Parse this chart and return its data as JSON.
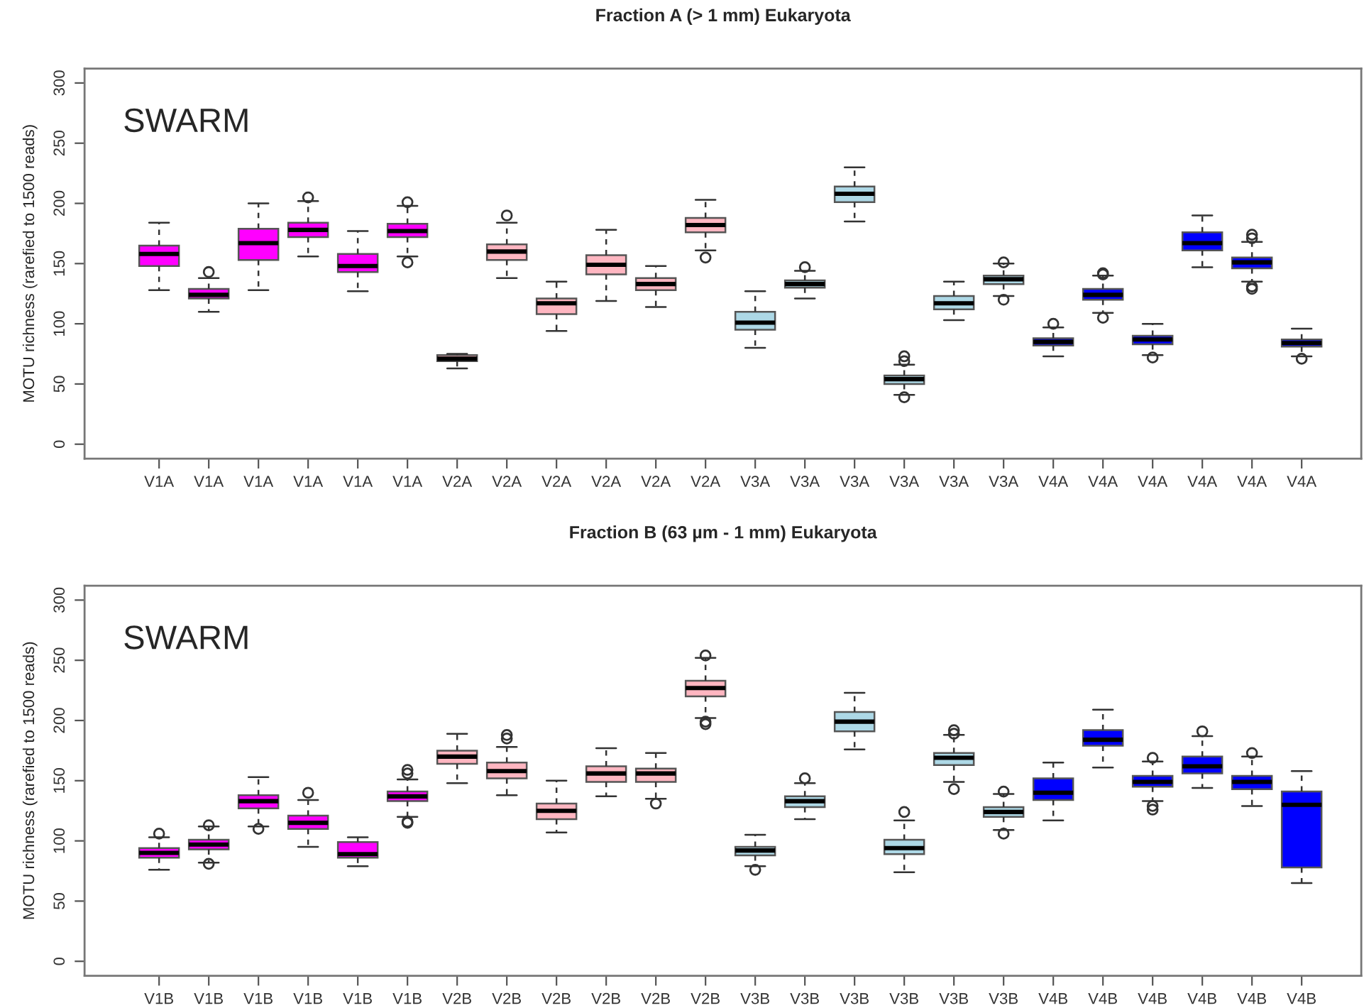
{
  "chart_data": [
    {
      "type": "box",
      "title": "Fraction A (> 1 mm) Eukaryota",
      "ylabel": "MOTU richness (rarefied to 1500 reads)",
      "annotations": [
        "SWARM"
      ],
      "categories": [
        "V1A",
        "V1A",
        "V1A",
        "V1A",
        "V1A",
        "V1A",
        "V2A",
        "V2A",
        "V2A",
        "V2A",
        "V2A",
        "V2A",
        "V3A",
        "V3A",
        "V3A",
        "V3A",
        "V3A",
        "V3A",
        "V4A",
        "V4A",
        "V4A",
        "V4A",
        "V4A",
        "V4A"
      ],
      "colors": [
        "#ff00ff",
        "#ff00ff",
        "#ff00ff",
        "#ff00ff",
        "#ff00ff",
        "#ff00ff",
        "#ffb6c1",
        "#ffb6c1",
        "#ffb6c1",
        "#ffb6c1",
        "#ffb6c1",
        "#ffb6c1",
        "#add8e6",
        "#add8e6",
        "#add8e6",
        "#add8e6",
        "#add8e6",
        "#add8e6",
        "#0000ff",
        "#0000ff",
        "#0000ff",
        "#0000ff",
        "#0000ff",
        "#0000ff"
      ],
      "ylim": [
        -12,
        312
      ],
      "yticks": [
        0,
        50,
        100,
        150,
        200,
        250,
        300
      ],
      "boxes": [
        {
          "low": 128,
          "q1": 148,
          "median": 158,
          "q3": 165,
          "high": 184
        },
        {
          "low": 110,
          "q1": 121,
          "median": 124,
          "q3": 129,
          "high": 138,
          "outliers": [
            143
          ]
        },
        {
          "low": 128,
          "q1": 153,
          "median": 167,
          "q3": 179,
          "high": 200
        },
        {
          "low": 156,
          "q1": 172,
          "median": 178,
          "q3": 184,
          "high": 202,
          "outliers": [
            205
          ]
        },
        {
          "low": 127,
          "q1": 143,
          "median": 148,
          "q3": 158,
          "high": 177
        },
        {
          "low": 156,
          "q1": 172,
          "median": 177,
          "q3": 183,
          "high": 198,
          "outliers": [
            201,
            151
          ]
        },
        {
          "low": 63,
          "q1": 69,
          "median": 71,
          "q3": 74,
          "high": 75
        },
        {
          "low": 138,
          "q1": 153,
          "median": 160,
          "q3": 166,
          "high": 184,
          "outliers": [
            190
          ]
        },
        {
          "low": 94,
          "q1": 108,
          "median": 117,
          "q3": 121,
          "high": 135
        },
        {
          "low": 119,
          "q1": 141,
          "median": 149,
          "q3": 157,
          "high": 178
        },
        {
          "low": 114,
          "q1": 128,
          "median": 133,
          "q3": 138,
          "high": 148
        },
        {
          "low": 161,
          "q1": 176,
          "median": 182,
          "q3": 188,
          "high": 203,
          "outliers": [
            155
          ]
        },
        {
          "low": 80,
          "q1": 95,
          "median": 101,
          "q3": 110,
          "high": 127
        },
        {
          "low": 121,
          "q1": 130,
          "median": 133,
          "q3": 136,
          "high": 144,
          "outliers": [
            147
          ]
        },
        {
          "low": 185,
          "q1": 201,
          "median": 208,
          "q3": 214,
          "high": 230
        },
        {
          "low": 41,
          "q1": 50,
          "median": 54,
          "q3": 57,
          "high": 66,
          "outliers": [
            73,
            69,
            39
          ]
        },
        {
          "low": 103,
          "q1": 112,
          "median": 117,
          "q3": 123,
          "high": 135
        },
        {
          "low": 123,
          "q1": 133,
          "median": 137,
          "q3": 140,
          "high": 150,
          "outliers": [
            151,
            120
          ]
        },
        {
          "low": 73,
          "q1": 82,
          "median": 85,
          "q3": 88,
          "high": 97,
          "outliers": [
            100
          ]
        },
        {
          "low": 109,
          "q1": 120,
          "median": 124,
          "q3": 129,
          "high": 140,
          "outliers": [
            142,
            141,
            105
          ]
        },
        {
          "low": 74,
          "q1": 83,
          "median": 87,
          "q3": 90,
          "high": 100,
          "outliers": [
            72
          ]
        },
        {
          "low": 147,
          "q1": 161,
          "median": 167,
          "q3": 176,
          "high": 190
        },
        {
          "low": 135,
          "q1": 146,
          "median": 151,
          "q3": 155,
          "high": 168,
          "outliers": [
            174,
            171,
            131,
            129
          ]
        },
        {
          "low": 73,
          "q1": 81,
          "median": 84,
          "q3": 87,
          "high": 96,
          "outliers": [
            71
          ]
        }
      ]
    },
    {
      "type": "box",
      "title": "Fraction B (63 µm - 1 mm) Eukaryota",
      "ylabel": "MOTU richness (rarefied to 1500 reads)",
      "annotations": [
        "SWARM"
      ],
      "categories": [
        "V1B",
        "V1B",
        "V1B",
        "V1B",
        "V1B",
        "V1B",
        "V2B",
        "V2B",
        "V2B",
        "V2B",
        "V2B",
        "V2B",
        "V3B",
        "V3B",
        "V3B",
        "V3B",
        "V3B",
        "V3B",
        "V4B",
        "V4B",
        "V4B",
        "V4B",
        "V4B",
        "V4B"
      ],
      "colors": [
        "#ff00ff",
        "#ff00ff",
        "#ff00ff",
        "#ff00ff",
        "#ff00ff",
        "#ff00ff",
        "#ffb6c1",
        "#ffb6c1",
        "#ffb6c1",
        "#ffb6c1",
        "#ffb6c1",
        "#ffb6c1",
        "#add8e6",
        "#add8e6",
        "#add8e6",
        "#add8e6",
        "#add8e6",
        "#add8e6",
        "#0000ff",
        "#0000ff",
        "#0000ff",
        "#0000ff",
        "#0000ff",
        "#0000ff"
      ],
      "ylim": [
        -12,
        312
      ],
      "yticks": [
        0,
        50,
        100,
        150,
        200,
        250,
        300
      ],
      "boxes": [
        {
          "low": 76,
          "q1": 86,
          "median": 90,
          "q3": 94,
          "high": 103,
          "outliers": [
            106
          ]
        },
        {
          "low": 82,
          "q1": 93,
          "median": 97,
          "q3": 101,
          "high": 112,
          "outliers": [
            113,
            81
          ]
        },
        {
          "low": 112,
          "q1": 127,
          "median": 133,
          "q3": 138,
          "high": 153,
          "outliers": [
            110
          ]
        },
        {
          "low": 95,
          "q1": 110,
          "median": 115,
          "q3": 121,
          "high": 134,
          "outliers": [
            140
          ]
        },
        {
          "low": 79,
          "q1": 86,
          "median": 89,
          "q3": 99,
          "high": 103
        },
        {
          "low": 120,
          "q1": 133,
          "median": 137,
          "q3": 141,
          "high": 151,
          "outliers": [
            159,
            156,
            116,
            115
          ]
        },
        {
          "low": 148,
          "q1": 164,
          "median": 170,
          "q3": 175,
          "high": 189
        },
        {
          "low": 138,
          "q1": 152,
          "median": 158,
          "q3": 165,
          "high": 178,
          "outliers": [
            188,
            185
          ]
        },
        {
          "low": 107,
          "q1": 118,
          "median": 125,
          "q3": 131,
          "high": 150
        },
        {
          "low": 137,
          "q1": 149,
          "median": 156,
          "q3": 162,
          "high": 177
        },
        {
          "low": 135,
          "q1": 149,
          "median": 156,
          "q3": 160,
          "high": 173,
          "outliers": [
            131
          ]
        },
        {
          "low": 202,
          "q1": 220,
          "median": 227,
          "q3": 233,
          "high": 252,
          "outliers": [
            254,
            199,
            197
          ]
        },
        {
          "low": 79,
          "q1": 88,
          "median": 92,
          "q3": 95,
          "high": 105,
          "outliers": [
            76
          ]
        },
        {
          "low": 118,
          "q1": 128,
          "median": 133,
          "q3": 137,
          "high": 148,
          "outliers": [
            152
          ]
        },
        {
          "low": 176,
          "q1": 191,
          "median": 199,
          "q3": 207,
          "high": 223
        },
        {
          "low": 74,
          "q1": 89,
          "median": 94,
          "q3": 101,
          "high": 117,
          "outliers": [
            124
          ]
        },
        {
          "low": 149,
          "q1": 163,
          "median": 169,
          "q3": 173,
          "high": 188,
          "outliers": [
            192,
            189,
            143
          ]
        },
        {
          "low": 109,
          "q1": 120,
          "median": 124,
          "q3": 128,
          "high": 139,
          "outliers": [
            141,
            106
          ]
        },
        {
          "low": 117,
          "q1": 134,
          "median": 140,
          "q3": 152,
          "high": 165
        },
        {
          "low": 161,
          "q1": 179,
          "median": 184,
          "q3": 192,
          "high": 209
        },
        {
          "low": 133,
          "q1": 145,
          "median": 149,
          "q3": 154,
          "high": 166,
          "outliers": [
            169,
            129,
            126
          ]
        },
        {
          "low": 144,
          "q1": 156,
          "median": 162,
          "q3": 170,
          "high": 187,
          "outliers": [
            191
          ]
        },
        {
          "low": 129,
          "q1": 143,
          "median": 149,
          "q3": 154,
          "high": 170,
          "outliers": [
            173
          ]
        },
        {
          "low": 65,
          "q1": 78,
          "median": 130,
          "q3": 141,
          "high": 158
        }
      ]
    }
  ]
}
